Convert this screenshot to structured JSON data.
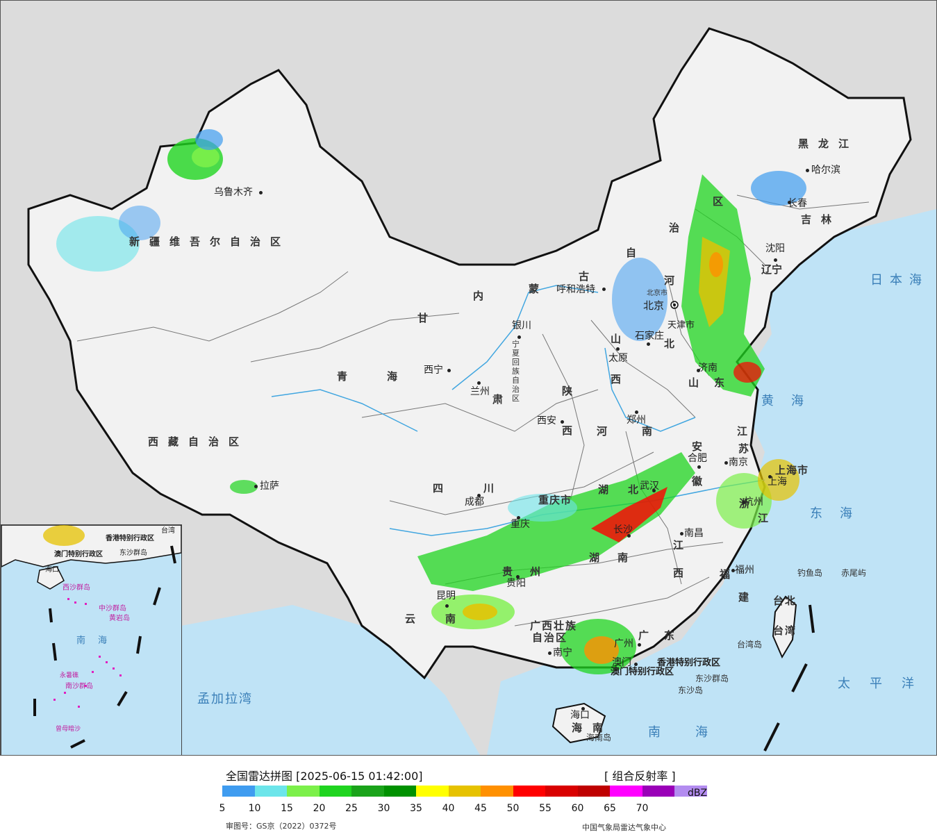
{
  "colors": {
    "sea": "#bfe3f6",
    "land": "#f2f2f2",
    "outside": "#dcdcdc",
    "border": "#111111",
    "river": "#41a6e0"
  },
  "map_labels": {
    "xinjiang": "新疆维吾尔自治区",
    "xizang": "西藏自治区",
    "qinghai_q": "青",
    "qinghai_h": "海",
    "gansu_g": "甘",
    "gansu_s": "肃",
    "sichuan_s": "四",
    "sichuan_c": "川",
    "yunnan_y": "云",
    "yunnan_n": "南",
    "neimenggu_n": "内",
    "neimenggu_m": "蒙",
    "neimenggu_g": "古",
    "neimenggu_z": "自",
    "neimenggu_zh": "治",
    "neimenggu_q": "区",
    "heilongjiang": "黑龙江",
    "jilin": "吉林",
    "liaoning_l": "辽",
    "liaoning_n": "宁",
    "hebei_h": "河",
    "hebei_b": "北",
    "shanxi_s": "山",
    "shanxi_x": "西",
    "shaanxi_s": "陕",
    "shaanxi_x": "西",
    "shandong_s": "山",
    "shandong_d": "东",
    "henan_h": "河",
    "henan_n": "南",
    "jiangsu_j": "江",
    "jiangsu_s": "苏",
    "anhui_a": "安",
    "anhui_h": "徽",
    "hubei_h": "湖",
    "hubei_b": "北",
    "hunan_h": "湖",
    "hunan_n": "南",
    "jiangxi_j": "江",
    "jiangxi_x": "西",
    "zhejiang_z": "浙",
    "zhejiang_j": "江",
    "fujian_f": "福",
    "fujian_j": "建",
    "guizhou_g": "贵",
    "guizhou_z": "州",
    "guangxi_1": "广西壮族",
    "guangxi_2": "自治区",
    "guangdong_g": "广",
    "guangdong_d": "东",
    "hainan_h": "海",
    "hainan_n": "南",
    "ningxia": "宁夏回族自治区",
    "chongqing": "重庆市",
    "shanghai": "上海市",
    "tianjin": "天津市",
    "beijing": "北京",
    "beijing_small": "北京市",
    "taiwan_1": "台北",
    "taiwan_2": "台湾",
    "hk": "香港特别行政区",
    "macau": "澳门特别行政区"
  },
  "cities": [
    {
      "name": "乌鲁木齐"
    },
    {
      "name": "拉萨"
    },
    {
      "name": "西宁"
    },
    {
      "name": "兰州"
    },
    {
      "name": "银川"
    },
    {
      "name": "成都"
    },
    {
      "name": "重庆"
    },
    {
      "name": "贵阳"
    },
    {
      "name": "昆明"
    },
    {
      "name": "南宁"
    },
    {
      "name": "广州"
    },
    {
      "name": "澳门"
    },
    {
      "name": "海口"
    },
    {
      "name": "西安"
    },
    {
      "name": "郑州"
    },
    {
      "name": "太原"
    },
    {
      "name": "石家庄"
    },
    {
      "name": "呼和浩特"
    },
    {
      "name": "济南"
    },
    {
      "name": "南京"
    },
    {
      "name": "合肥"
    },
    {
      "name": "武汉"
    },
    {
      "name": "长沙"
    },
    {
      "name": "南昌"
    },
    {
      "name": "杭州"
    },
    {
      "name": "上海"
    },
    {
      "name": "福州"
    },
    {
      "name": "沈阳"
    },
    {
      "name": "长春"
    },
    {
      "name": "哈尔滨"
    }
  ],
  "islands": {
    "diaoyu": "钓鱼岛",
    "chiwei": "赤尾屿",
    "taiwan_island": "台湾岛",
    "dongsha_group": "东沙群岛",
    "dongsha": "东沙岛",
    "hainan_island": "海南岛"
  },
  "seas": {
    "japan_sea": "日本海",
    "yellow_sea": "黄海",
    "east_sea": "东海",
    "pacific": "太平洋",
    "south_sea": "南海",
    "bengal": "孟加拉湾"
  },
  "inset_labels": {
    "hk": "香港特别行政区",
    "macau": "澳门特别行政区",
    "dongsha": "东沙群岛",
    "south_sea": "南海",
    "haikou": "海口",
    "taiwan": "台湾",
    "xisha": "西沙群岛",
    "zhongsha": "中沙群岛",
    "huangyan": "黄岩岛",
    "nansha": "南沙群岛",
    "yongshu": "永暑礁",
    "zengmu": "曾母暗沙"
  },
  "legend": {
    "title": "全国雷达拼图 [2025-06-15 01:42:00]",
    "product": "[ 组合反射率 ]",
    "unit": "dBZ",
    "ticks": [
      "5",
      "10",
      "15",
      "20",
      "25",
      "30",
      "35",
      "40",
      "45",
      "50",
      "55",
      "60",
      "65",
      "70"
    ],
    "colors": [
      "#3f9cf0",
      "#6ce5ea",
      "#7cf04a",
      "#1fd41f",
      "#1aa31a",
      "#009100",
      "#ffff00",
      "#e6c200",
      "#ff9000",
      "#ff0000",
      "#d90000",
      "#bf0000",
      "#ff00ff",
      "#9a00b8",
      "#b38cf0"
    ],
    "map_number": "审图号：GS京（2022）0372号",
    "credit": "中国气象局雷达气象中心"
  }
}
